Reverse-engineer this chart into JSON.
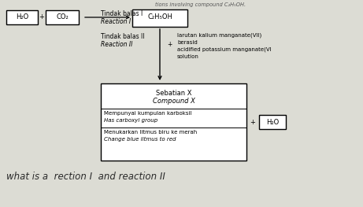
{
  "bg_color": "#dcdcd4",
  "title_text": "tions involving compound C₂H₅OH.",
  "h2o_label": "H₂O",
  "co2_label": "CO₂",
  "plus1": "+",
  "tindak_balas_I_ms": "Tindak balas I",
  "tindak_balas_I_en": "Reaction I",
  "c2h5oh_label": "C₂H₅OH",
  "tindak_balas_II_ms": "Tindak balas II",
  "tindak_balas_II_en": "Reaction II",
  "reagent_ms": "larutan kalium manganate(VII)",
  "reagent_line2": "berasid",
  "reagent_en": "acidified potassium manganate(VI",
  "reagent_line4": "solution",
  "plus2": "+",
  "sebatian_ms": "Sebatian X",
  "sebatian_en": "Compound X",
  "prop1_ms": "Mempunyai kumpulan karboksil",
  "prop1_en": "Has carboxyl group",
  "prop2_ms": "Menukarkan litmus biru ke merah",
  "prop2_en": "Change blue litmus to red",
  "h2o_box": "H₂O",
  "handwritten": "what is a  rection I  and reaction II"
}
